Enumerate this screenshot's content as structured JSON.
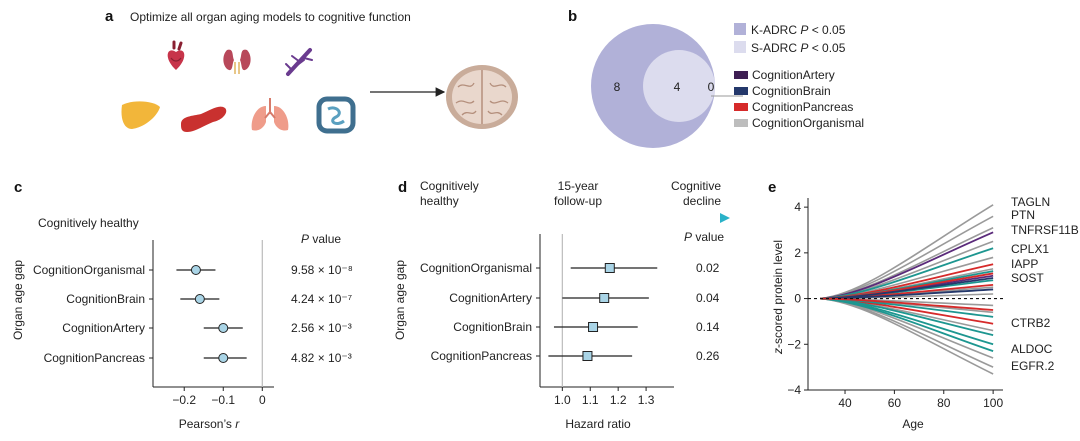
{
  "panel_a": {
    "letter": "a",
    "title": "Optimize all organ aging models to cognitive function",
    "icons": [
      "heart-icon",
      "kidney-icon",
      "artery-icon",
      "liver-icon",
      "pancreas-icon",
      "lungs-icon",
      "intestine-icon",
      "brain-icon"
    ],
    "colors": {
      "heart": "#c7344a",
      "kidney": "#b8485a",
      "artery": "#6a3b8f",
      "liver": "#f2b63a",
      "pancreas": "#c9312f",
      "lungs": "#ef9c8a",
      "intestine": "#3f6f8f",
      "brain": "#d8c1b3"
    }
  },
  "panel_b": {
    "letter": "b",
    "venn": {
      "outer_count": "8",
      "inner_count": "4",
      "side_count": "0"
    },
    "legend_sets": [
      {
        "label": "K-ADRC P < 0.05",
        "color": "#b1b1d8"
      },
      {
        "label": "S-ADRC P < 0.05",
        "color": "#dcdcee"
      }
    ],
    "legend_models": [
      {
        "label": "CognitionArtery",
        "color": "#3e1e53"
      },
      {
        "label": "CognitionBrain",
        "color": "#24386b"
      },
      {
        "label": "CognitionPancreas",
        "color": "#d62a2a"
      },
      {
        "label": "CognitionOrganismal",
        "color": "#bdbdbd"
      }
    ]
  },
  "panel_c": {
    "letter": "c",
    "subtitle": "Cognitively healthy",
    "pvalue_header": "P value",
    "ylabel": "Organ age gap",
    "xlabel": "Pearson's r"
  },
  "panel_d": {
    "letter": "d",
    "arrow_left": [
      "Cognitively",
      "healthy"
    ],
    "arrow_mid": [
      "15-year",
      "follow-up"
    ],
    "arrow_right": [
      "Cognitive",
      "decline"
    ],
    "pvalue_header": "P value",
    "ylabel": "Organ age gap",
    "xlabel": "Hazard ratio"
  },
  "panel_e": {
    "letter": "e",
    "ylabel": "z-scored protein level",
    "xlabel": "Age"
  },
  "chart_data": [
    {
      "type": "scatter",
      "panel": "c",
      "subtitle": "Cognitively healthy",
      "xlabel": "Pearson's r",
      "ylabel": "Organ age gap",
      "xlim": [
        -0.28,
        0.03
      ],
      "xticks": [
        -0.2,
        -0.1,
        0
      ],
      "reference_line": 0,
      "rows": [
        {
          "label": "CognitionOrganismal",
          "estimate": -0.17,
          "lo": -0.22,
          "hi": -0.12,
          "p": "9.58 × 10⁻⁸"
        },
        {
          "label": "CognitionBrain",
          "estimate": -0.16,
          "lo": -0.21,
          "hi": -0.11,
          "p": "4.24 × 10⁻⁷"
        },
        {
          "label": "CognitionArtery",
          "estimate": -0.1,
          "lo": -0.15,
          "hi": -0.05,
          "p": "2.56 × 10⁻³"
        },
        {
          "label": "CognitionPancreas",
          "estimate": -0.1,
          "lo": -0.15,
          "hi": -0.04,
          "p": "4.82 × 10⁻³"
        }
      ]
    },
    {
      "type": "scatter",
      "panel": "d",
      "xlabel": "Hazard ratio",
      "ylabel": "Organ age gap",
      "xlim": [
        0.92,
        1.4
      ],
      "xticks": [
        1.0,
        1.1,
        1.2,
        1.3
      ],
      "reference_line": 1.0,
      "rows": [
        {
          "label": "CognitionOrganismal",
          "estimate": 1.17,
          "lo": 1.03,
          "hi": 1.34,
          "p": "0.02"
        },
        {
          "label": "CognitionArtery",
          "estimate": 1.15,
          "lo": 1.0,
          "hi": 1.31,
          "p": "0.04"
        },
        {
          "label": "CognitionBrain",
          "estimate": 1.11,
          "lo": 0.97,
          "hi": 1.27,
          "p": "0.14"
        },
        {
          "label": "CognitionPancreas",
          "estimate": 1.09,
          "lo": 0.95,
          "hi": 1.25,
          "p": "0.26"
        }
      ]
    },
    {
      "type": "line",
      "panel": "e",
      "xlabel": "Age",
      "ylabel": "z-scored protein level",
      "xlim": [
        25,
        104
      ],
      "ylim": [
        -4,
        4.4
      ],
      "xticks": [
        40,
        60,
        80,
        100
      ],
      "yticks": [
        -4,
        -2,
        0,
        2,
        4
      ],
      "zero_line": "dashed",
      "x": [
        30,
        100
      ],
      "series": [
        {
          "name": "TAGLN",
          "color": "#9a9a9a",
          "values": [
            0,
            4.1
          ],
          "labeled": true
        },
        {
          "name": "PTN",
          "color": "#9a9a9a",
          "values": [
            0,
            3.6
          ],
          "labeled": true
        },
        {
          "name": "TNFRSF11B",
          "color": "#5a2a7a",
          "values": [
            0,
            2.9
          ],
          "labeled": true
        },
        {
          "name": "CPLX1",
          "color": "#1d9690",
          "values": [
            0,
            2.2
          ],
          "labeled": true
        },
        {
          "name": "IAPP",
          "color": "#d62a2a",
          "values": [
            0,
            1.5
          ],
          "labeled": true
        },
        {
          "name": "SOST",
          "color": "#5a2a7a",
          "values": [
            0,
            1.0
          ],
          "labeled": true
        },
        {
          "name": "CTRB2",
          "color": "#d62a2a",
          "values": [
            0,
            -1.1
          ],
          "labeled": true
        },
        {
          "name": "ALDOC",
          "color": "#1d9690",
          "values": [
            0,
            -2.3
          ],
          "labeled": true
        },
        {
          "name": "EGFR.2",
          "color": "#9a9a9a",
          "values": [
            0,
            -3.0
          ],
          "labeled": true
        },
        {
          "name": "",
          "color": "#9a9a9a",
          "values": [
            0,
            3.1
          ],
          "labeled": false
        },
        {
          "name": "",
          "color": "#9a9a9a",
          "values": [
            0,
            2.5
          ],
          "labeled": false
        },
        {
          "name": "",
          "color": "#9a9a9a",
          "values": [
            0,
            1.8
          ],
          "labeled": false
        },
        {
          "name": "",
          "color": "#9a9a9a",
          "values": [
            0,
            1.3
          ],
          "labeled": false
        },
        {
          "name": "",
          "color": "#1d9690",
          "values": [
            0,
            1.2
          ],
          "labeled": false
        },
        {
          "name": "",
          "color": "#1d9690",
          "values": [
            0,
            0.8
          ],
          "labeled": false
        },
        {
          "name": "",
          "color": "#d62a2a",
          "values": [
            0,
            1.1
          ],
          "labeled": false
        },
        {
          "name": "",
          "color": "#d62a2a",
          "values": [
            0,
            0.6
          ],
          "labeled": false
        },
        {
          "name": "",
          "color": "#24386b",
          "values": [
            0,
            0.9
          ],
          "labeled": false
        },
        {
          "name": "",
          "color": "#24386b",
          "values": [
            0,
            0.4
          ],
          "labeled": false
        },
        {
          "name": "",
          "color": "#9a9a9a",
          "values": [
            0,
            0.5
          ],
          "labeled": false
        },
        {
          "name": "",
          "color": "#9a9a9a",
          "values": [
            0,
            0.2
          ],
          "labeled": false
        },
        {
          "name": "",
          "color": "#9a9a9a",
          "values": [
            0,
            -0.3
          ],
          "labeled": false
        },
        {
          "name": "",
          "color": "#9a9a9a",
          "values": [
            0,
            -0.6
          ],
          "labeled": false
        },
        {
          "name": "",
          "color": "#1d9690",
          "values": [
            0,
            -0.8
          ],
          "labeled": false
        },
        {
          "name": "",
          "color": "#1d9690",
          "values": [
            0,
            -1.6
          ],
          "labeled": false
        },
        {
          "name": "",
          "color": "#1d9690",
          "values": [
            0,
            -2.0
          ],
          "labeled": false
        },
        {
          "name": "",
          "color": "#d62a2a",
          "values": [
            0,
            -0.5
          ],
          "labeled": false
        },
        {
          "name": "",
          "color": "#9a9a9a",
          "values": [
            0,
            -1.4
          ],
          "labeled": false
        },
        {
          "name": "",
          "color": "#9a9a9a",
          "values": [
            0,
            -2.6
          ],
          "labeled": false
        },
        {
          "name": "",
          "color": "#9a9a9a",
          "values": [
            0,
            -3.3
          ],
          "labeled": false
        }
      ]
    }
  ]
}
